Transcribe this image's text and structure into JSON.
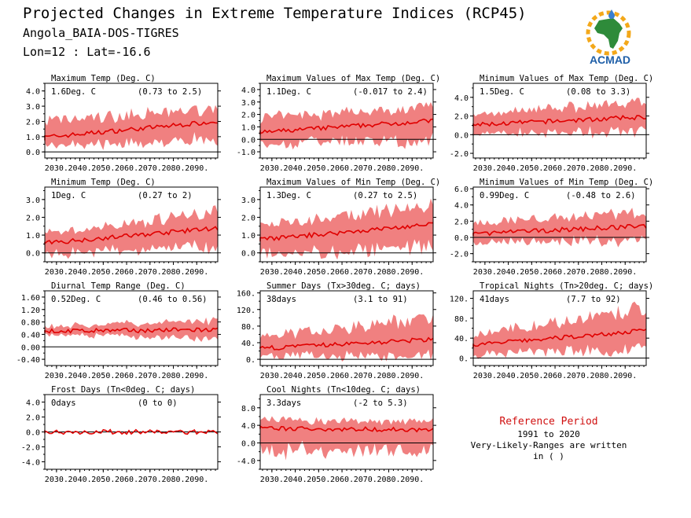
{
  "header": {
    "title": "Projected Changes in Extreme Temperature Indices (RCP45)",
    "location": "Angola_BAIA-DOS-TIGRES",
    "coords": "Lon=12 : Lat=-16.6"
  },
  "logo": {
    "label": "ACMAD",
    "icon": "africa-map-logo-icon"
  },
  "reference": {
    "title": "Reference Period",
    "period": "1991 to 2020",
    "note": "Very-Likely-Ranges are written in ( )"
  },
  "colors": {
    "band": "#f08080",
    "line": "#e00000",
    "zero": "#000000"
  },
  "chart_data": [
    {
      "type": "area",
      "title": "Maximum Temp (Deg. C)",
      "value_label": "1.6Deg. C",
      "range_label": "(0.73 to 2.5)",
      "x_ticks": [
        "2030.",
        "2040.",
        "2050.",
        "2060.",
        "2070.",
        "2080.",
        "2090."
      ],
      "y_ticks": [
        "0.0",
        "1.0",
        "2.0",
        "3.0",
        "4.0"
      ],
      "ylim": [
        -0.4,
        4.5
      ],
      "mean_start": 0.9,
      "mean_end": 2.0,
      "band_lo": [
        0.6,
        1.2
      ],
      "band_hi": [
        1.1,
        0.9
      ]
    },
    {
      "type": "area",
      "title": "Maximum Values of Max Temp (Deg. C)",
      "value_label": "1.1Deg. C",
      "range_label": "(-0.017 to 2.4)",
      "x_ticks": [
        "2030.",
        "2040.",
        "2050.",
        "2060.",
        "2070.",
        "2080.",
        "2090."
      ],
      "y_ticks": [
        "-1.0",
        "0.0",
        "1.0",
        "2.0",
        "3.0",
        "4.0"
      ],
      "ylim": [
        -1.5,
        4.5
      ],
      "mean_start": 0.5,
      "mean_end": 1.5,
      "band_lo": [
        1.0,
        1.6
      ],
      "band_hi": [
        1.2,
        1.2
      ]
    },
    {
      "type": "area",
      "title": "Minimum Values of Max Temp (Deg. C)",
      "value_label": "1.5Deg. C",
      "range_label": "(0.08 to 3.3)",
      "x_ticks": [
        "2030.",
        "2040.",
        "2050.",
        "2060.",
        "2070.",
        "2080.",
        "2090."
      ],
      "y_ticks": [
        "-2.0",
        "0.0",
        "2.0",
        "4.0"
      ],
      "ylim": [
        -2.5,
        5.5
      ],
      "mean_start": 1.0,
      "mean_end": 1.9,
      "band_lo": [
        1.0,
        1.6
      ],
      "band_hi": [
        1.2,
        1.8
      ]
    },
    {
      "type": "area",
      "title": "Minimum Temp (Deg. C)",
      "value_label": "1Deg. C",
      "range_label": "(0.27 to 2)",
      "x_ticks": [
        "2030.",
        "2040.",
        "2050.",
        "2060.",
        "2070.",
        "2080.",
        "2090."
      ],
      "y_ticks": [
        "0.0",
        "1.0",
        "2.0",
        "3.0"
      ],
      "ylim": [
        -0.5,
        3.7
      ],
      "mean_start": 0.5,
      "mean_end": 1.4,
      "band_lo": [
        0.6,
        1.1
      ],
      "band_hi": [
        0.5,
        1.0
      ]
    },
    {
      "type": "area",
      "title": "Maximum Values of Min Temp (Deg. C)",
      "value_label": "1.3Deg. C",
      "range_label": "(0.27 to 2.5)",
      "x_ticks": [
        "2030.",
        "2040.",
        "2050.",
        "2060.",
        "2070.",
        "2080.",
        "2090."
      ],
      "y_ticks": [
        "0.0",
        "1.0",
        "2.0",
        "3.0"
      ],
      "ylim": [
        -0.5,
        3.7
      ],
      "mean_start": 0.7,
      "mean_end": 1.6,
      "band_lo": [
        0.9,
        1.3
      ],
      "band_hi": [
        0.8,
        1.1
      ]
    },
    {
      "type": "area",
      "title": "Minimum Values of Min Temp (Deg. C)",
      "value_label": "0.99Deg. C",
      "range_label": "(-0.48 to 2.6)",
      "x_ticks": [
        "2030.",
        "2040.",
        "2050.",
        "2060.",
        "2070.",
        "2080.",
        "2090."
      ],
      "y_ticks": [
        "-2.0",
        "0.0",
        "2.0",
        "4.0",
        "6.0"
      ],
      "ylim": [
        -3.0,
        6.2
      ],
      "mean_start": 0.4,
      "mean_end": 1.4,
      "band_lo": [
        1.2,
        1.8
      ],
      "band_hi": [
        1.3,
        1.8
      ]
    },
    {
      "type": "area",
      "title": "Diurnal Temp Range (Deg. C)",
      "value_label": "0.52Deg. C",
      "range_label": "(0.46 to 0.56)",
      "x_ticks": [
        "2030.",
        "2040.",
        "2050.",
        "2060.",
        "2070.",
        "2080.",
        "2090."
      ],
      "y_ticks": [
        "-0.40",
        "0.00",
        "0.40",
        "0.80",
        "1.20",
        "1.60"
      ],
      "ylim": [
        -0.6,
        1.8
      ],
      "mean_start": 0.5,
      "mean_end": 0.55,
      "band_lo": [
        0.1,
        0.3
      ],
      "band_hi": [
        0.15,
        0.3
      ]
    },
    {
      "type": "area",
      "title": "Summer Days (Tx>30deg. C; days)",
      "value_label": "38days",
      "range_label": "(3.1 to 91)",
      "x_ticks": [
        "2030.",
        "2040.",
        "2050.",
        "2060.",
        "2070.",
        "2080.",
        "2090."
      ],
      "y_ticks": [
        "0.",
        "40.",
        "80.",
        "120.",
        "160."
      ],
      "ylim": [
        -15,
        165
      ],
      "mean_start": 25,
      "mean_end": 48,
      "band_lo": [
        20,
        40
      ],
      "band_hi": [
        25,
        55
      ]
    },
    {
      "type": "area",
      "title": "Tropical Nights (Tn>20deg. C; days)",
      "value_label": "41days",
      "range_label": "(7.7 to 92)",
      "x_ticks": [
        "2030.",
        "2040.",
        "2050.",
        "2060.",
        "2070.",
        "2080.",
        "2090."
      ],
      "y_ticks": [
        "0.",
        "40.",
        "80.",
        "120."
      ],
      "ylim": [
        -15,
        135
      ],
      "mean_start": 25,
      "mean_end": 55,
      "band_lo": [
        20,
        40
      ],
      "band_hi": [
        20,
        45
      ]
    },
    {
      "type": "area",
      "title": "Frost Days (Tn<0deg. C; days)",
      "value_label": "0days",
      "range_label": "(0 to 0)",
      "x_ticks": [
        "2030.",
        "2040.",
        "2050.",
        "2060.",
        "2070.",
        "2080.",
        "2090."
      ],
      "y_ticks": [
        "-4.0",
        "-2.0",
        "0.0",
        "2.0",
        "4.0"
      ],
      "ylim": [
        -5,
        5
      ],
      "mean_start": 0,
      "mean_end": 0,
      "band_lo": [
        0,
        0
      ],
      "band_hi": [
        0,
        0
      ]
    },
    {
      "type": "area",
      "title": "Cool Nights (Tn<10deg. C; days)",
      "value_label": "3.3days",
      "range_label": "(-2 to 5.3)",
      "x_ticks": [
        "2030.",
        "2040.",
        "2050.",
        "2060.",
        "2070.",
        "2080.",
        "2090."
      ],
      "y_ticks": [
        "-4.0",
        "0.0",
        "4.0",
        "8.0"
      ],
      "ylim": [
        -6,
        11
      ],
      "mean_start": 3.3,
      "mean_end": 3.0,
      "band_lo": [
        5.3,
        5.0
      ],
      "band_hi": [
        2.0,
        2.2
      ]
    }
  ]
}
